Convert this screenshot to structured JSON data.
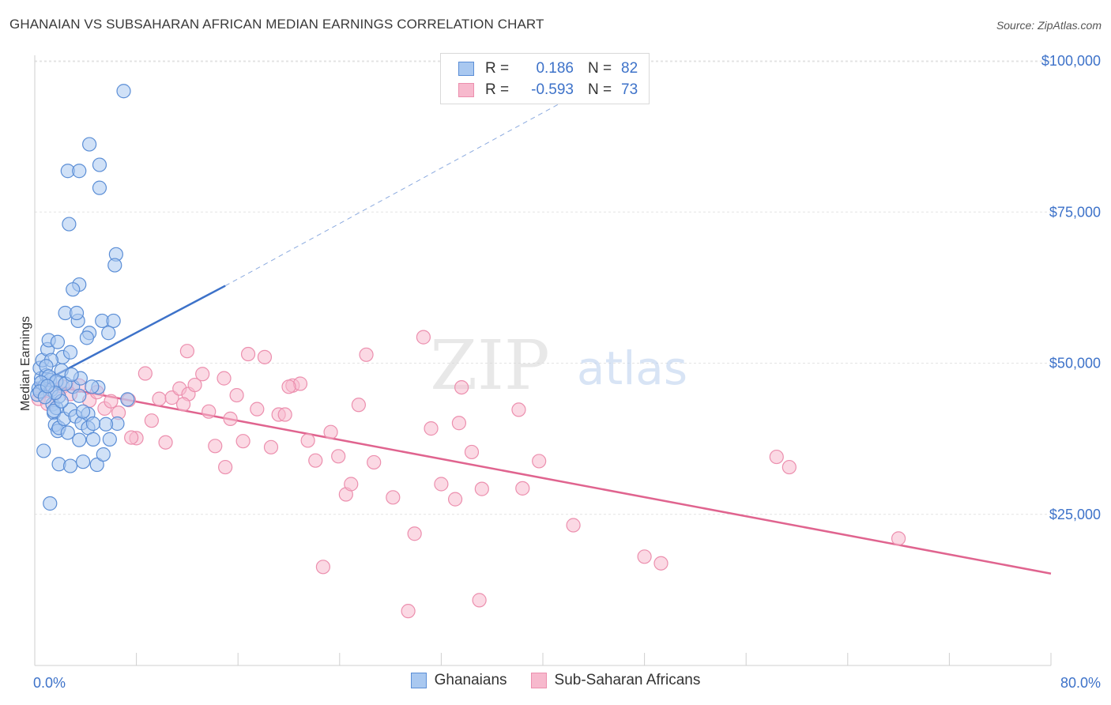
{
  "title": "GHANAIAN VS SUBSAHARAN AFRICAN MEDIAN EARNINGS CORRELATION CHART",
  "source": "Source: ZipAtlas.com",
  "watermark": {
    "zip": "ZIP",
    "atlas": "atlas"
  },
  "colors": {
    "blue": "#3d72c9",
    "blue_fill": "#a9c8f0",
    "blue_stroke": "#5b8ed6",
    "pink": "#e0648f",
    "pink_fill": "#f7b9cd",
    "pink_stroke": "#ec8fae",
    "grid": "#e3e3e3",
    "axis_text": "#3d72c9"
  },
  "legend": {
    "rows": [
      {
        "r_label": "R =",
        "r_value": "0.186",
        "n_label": "N =",
        "n_value": "82"
      },
      {
        "r_label": "R =",
        "r_value": "-0.593",
        "n_label": "N =",
        "n_value": "73"
      }
    ]
  },
  "bottom_legend": [
    "Ghanaians",
    "Sub-Saharan Africans"
  ],
  "chart_data": {
    "type": "scatter",
    "title": "GHANAIAN VS SUBSAHARAN AFRICAN MEDIAN EARNINGS CORRELATION CHART",
    "xlabel": "",
    "ylabel": "Median Earnings",
    "xlim": [
      0,
      80
    ],
    "ylim": [
      0,
      102000
    ],
    "x_tick_labels": [
      "0.0%",
      "80.0%"
    ],
    "y_ticks": [
      25000,
      50000,
      75000,
      100000
    ],
    "y_tick_labels": [
      "$25,000",
      "$50,000",
      "$75,000",
      "$100,000"
    ],
    "grid": true,
    "legend_position": "top-center",
    "series": [
      {
        "name": "Ghanaians",
        "r": 0.186,
        "n": 82,
        "trend": {
          "x0": 0.0,
          "y0": 46200,
          "x1": 15.0,
          "y1": 62800,
          "dash_to_x": 44.0,
          "dash_to_y": 96000
        },
        "points": [
          [
            0.3,
            45800
          ],
          [
            0.5,
            47500
          ],
          [
            0.4,
            49200
          ],
          [
            0.6,
            50500
          ],
          [
            0.2,
            44800
          ],
          [
            0.8,
            46300
          ],
          [
            0.9,
            48000
          ],
          [
            1.0,
            52300
          ],
          [
            1.1,
            53800
          ],
          [
            1.2,
            47200
          ],
          [
            1.3,
            45600
          ],
          [
            1.4,
            43200
          ],
          [
            1.5,
            41800
          ],
          [
            1.6,
            39800
          ],
          [
            1.7,
            42600
          ],
          [
            1.8,
            38800
          ],
          [
            1.9,
            44500
          ],
          [
            2.0,
            46800
          ],
          [
            2.1,
            48800
          ],
          [
            2.2,
            51000
          ],
          [
            0.7,
            35500
          ],
          [
            1.5,
            42100
          ],
          [
            1.9,
            39300
          ],
          [
            2.3,
            40800
          ],
          [
            2.6,
            38500
          ],
          [
            2.8,
            42300
          ],
          [
            3.0,
            46100
          ],
          [
            3.2,
            41200
          ],
          [
            3.5,
            44600
          ],
          [
            3.7,
            40100
          ],
          [
            1.9,
            33300
          ],
          [
            2.8,
            33000
          ],
          [
            3.5,
            37300
          ],
          [
            3.8,
            33700
          ],
          [
            4.2,
            39300
          ],
          [
            4.6,
            37400
          ],
          [
            4.9,
            33200
          ],
          [
            5.4,
            34900
          ],
          [
            5.9,
            37400
          ],
          [
            1.2,
            26800
          ],
          [
            5.0,
            46000
          ],
          [
            4.2,
            41600
          ],
          [
            6.5,
            40000
          ],
          [
            7.3,
            44000
          ],
          [
            3.4,
            57000
          ],
          [
            4.3,
            55000
          ],
          [
            3.5,
            63000
          ],
          [
            3.0,
            62200
          ],
          [
            2.4,
            58300
          ],
          [
            5.3,
            57000
          ],
          [
            6.2,
            57000
          ],
          [
            5.8,
            55000
          ],
          [
            4.1,
            54200
          ],
          [
            3.3,
            58300
          ],
          [
            6.4,
            68000
          ],
          [
            6.3,
            66200
          ],
          [
            2.7,
            73000
          ],
          [
            2.6,
            81800
          ],
          [
            3.5,
            81800
          ],
          [
            5.1,
            82800
          ],
          [
            5.1,
            79000
          ],
          [
            4.3,
            86200
          ],
          [
            7.0,
            95000
          ],
          [
            1.8,
            53500
          ],
          [
            2.8,
            51800
          ],
          [
            1.3,
            50500
          ],
          [
            0.9,
            49500
          ],
          [
            1.1,
            47800
          ],
          [
            0.5,
            46800
          ],
          [
            0.4,
            45300
          ],
          [
            1.7,
            47000
          ],
          [
            2.4,
            46600
          ],
          [
            3.6,
            47500
          ],
          [
            4.5,
            46100
          ],
          [
            5.6,
            39900
          ],
          [
            4.6,
            40000
          ],
          [
            2.1,
            43700
          ],
          [
            1.6,
            45100
          ],
          [
            0.8,
            44400
          ],
          [
            1.0,
            46200
          ],
          [
            2.9,
            48100
          ],
          [
            3.8,
            42000
          ]
        ]
      },
      {
        "name": "Sub-Saharan Africans",
        "r": -0.593,
        "n": 73,
        "trend": {
          "x0": 0.0,
          "y0": 46800,
          "x1": 80.0,
          "y1": 15200
        },
        "points": [
          [
            0.5,
            45300
          ],
          [
            0.3,
            44100
          ],
          [
            1.0,
            43300
          ],
          [
            1.6,
            45000
          ],
          [
            2.2,
            46100
          ],
          [
            2.8,
            44900
          ],
          [
            3.5,
            46300
          ],
          [
            4.3,
            43800
          ],
          [
            4.9,
            45200
          ],
          [
            5.5,
            42500
          ],
          [
            6.0,
            43700
          ],
          [
            6.6,
            41800
          ],
          [
            7.4,
            43900
          ],
          [
            8.0,
            37600
          ],
          [
            8.7,
            48300
          ],
          [
            9.2,
            40500
          ],
          [
            9.8,
            44100
          ],
          [
            10.3,
            36900
          ],
          [
            10.8,
            44300
          ],
          [
            11.4,
            45800
          ],
          [
            12.1,
            44900
          ],
          [
            12.6,
            46400
          ],
          [
            12.0,
            52000
          ],
          [
            13.2,
            48200
          ],
          [
            13.7,
            42000
          ],
          [
            14.2,
            36300
          ],
          [
            14.9,
            47500
          ],
          [
            15.4,
            40800
          ],
          [
            15.9,
            44700
          ],
          [
            16.4,
            37100
          ],
          [
            16.8,
            51500
          ],
          [
            17.5,
            42400
          ],
          [
            18.1,
            51000
          ],
          [
            18.6,
            36100
          ],
          [
            19.2,
            41500
          ],
          [
            19.7,
            41500
          ],
          [
            20.3,
            46300
          ],
          [
            20.9,
            46600
          ],
          [
            20.0,
            46100
          ],
          [
            21.5,
            37200
          ],
          [
            22.1,
            33900
          ],
          [
            22.7,
            16300
          ],
          [
            23.3,
            38600
          ],
          [
            23.9,
            34600
          ],
          [
            24.5,
            28300
          ],
          [
            24.9,
            30000
          ],
          [
            25.5,
            43100
          ],
          [
            26.1,
            51400
          ],
          [
            26.7,
            33600
          ],
          [
            28.2,
            27800
          ],
          [
            29.4,
            9000
          ],
          [
            29.9,
            21800
          ],
          [
            30.6,
            54300
          ],
          [
            31.2,
            39200
          ],
          [
            32.0,
            30000
          ],
          [
            33.1,
            27500
          ],
          [
            33.4,
            40100
          ],
          [
            33.6,
            46000
          ],
          [
            34.4,
            35300
          ],
          [
            35.0,
            10800
          ],
          [
            35.2,
            29200
          ],
          [
            38.1,
            42300
          ],
          [
            38.4,
            29300
          ],
          [
            39.7,
            33800
          ],
          [
            42.4,
            23200
          ],
          [
            48.0,
            18000
          ],
          [
            49.3,
            16900
          ],
          [
            58.4,
            34500
          ],
          [
            59.4,
            32800
          ],
          [
            68.0,
            21000
          ],
          [
            7.6,
            37700
          ],
          [
            11.7,
            43200
          ],
          [
            15.0,
            32800
          ]
        ]
      }
    ]
  }
}
